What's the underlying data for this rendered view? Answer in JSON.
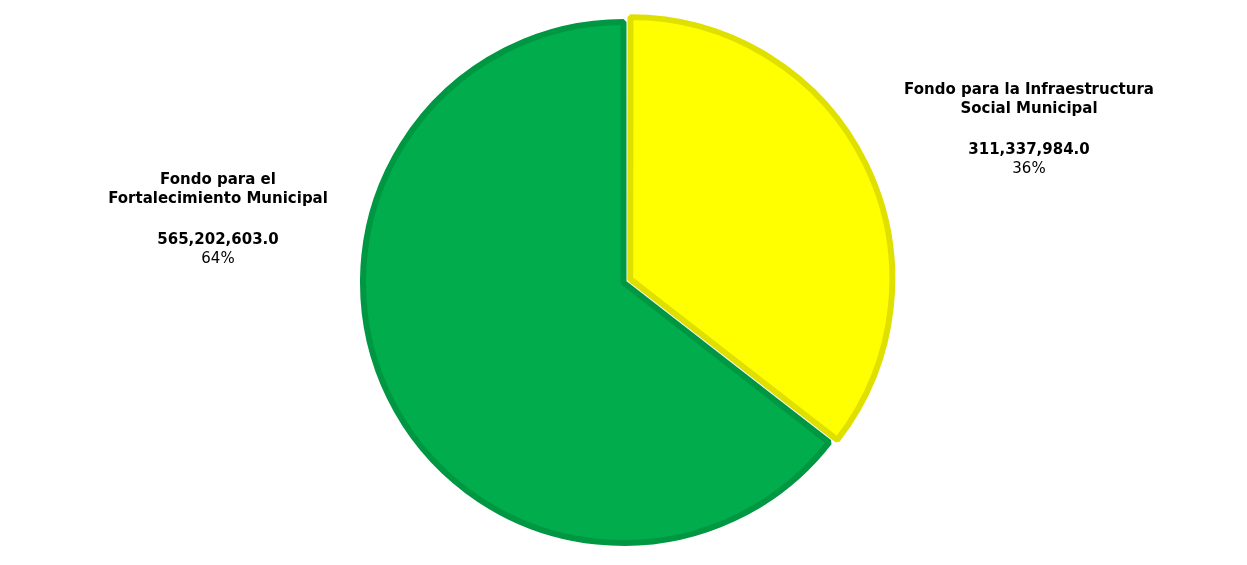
{
  "chart_data": {
    "type": "pie",
    "categories": [
      "Fondo para la Infraestructura Social Municipal",
      "Fondo para el Fortalecimiento Municipal"
    ],
    "values": [
      311337984.0,
      565202603.0
    ],
    "colors": [
      "#ffff00",
      "#00ac4c"
    ],
    "value_labels": [
      "311,337,984.0\n36%",
      "565,202,603.0\n64%"
    ],
    "legend": false
  }
}
